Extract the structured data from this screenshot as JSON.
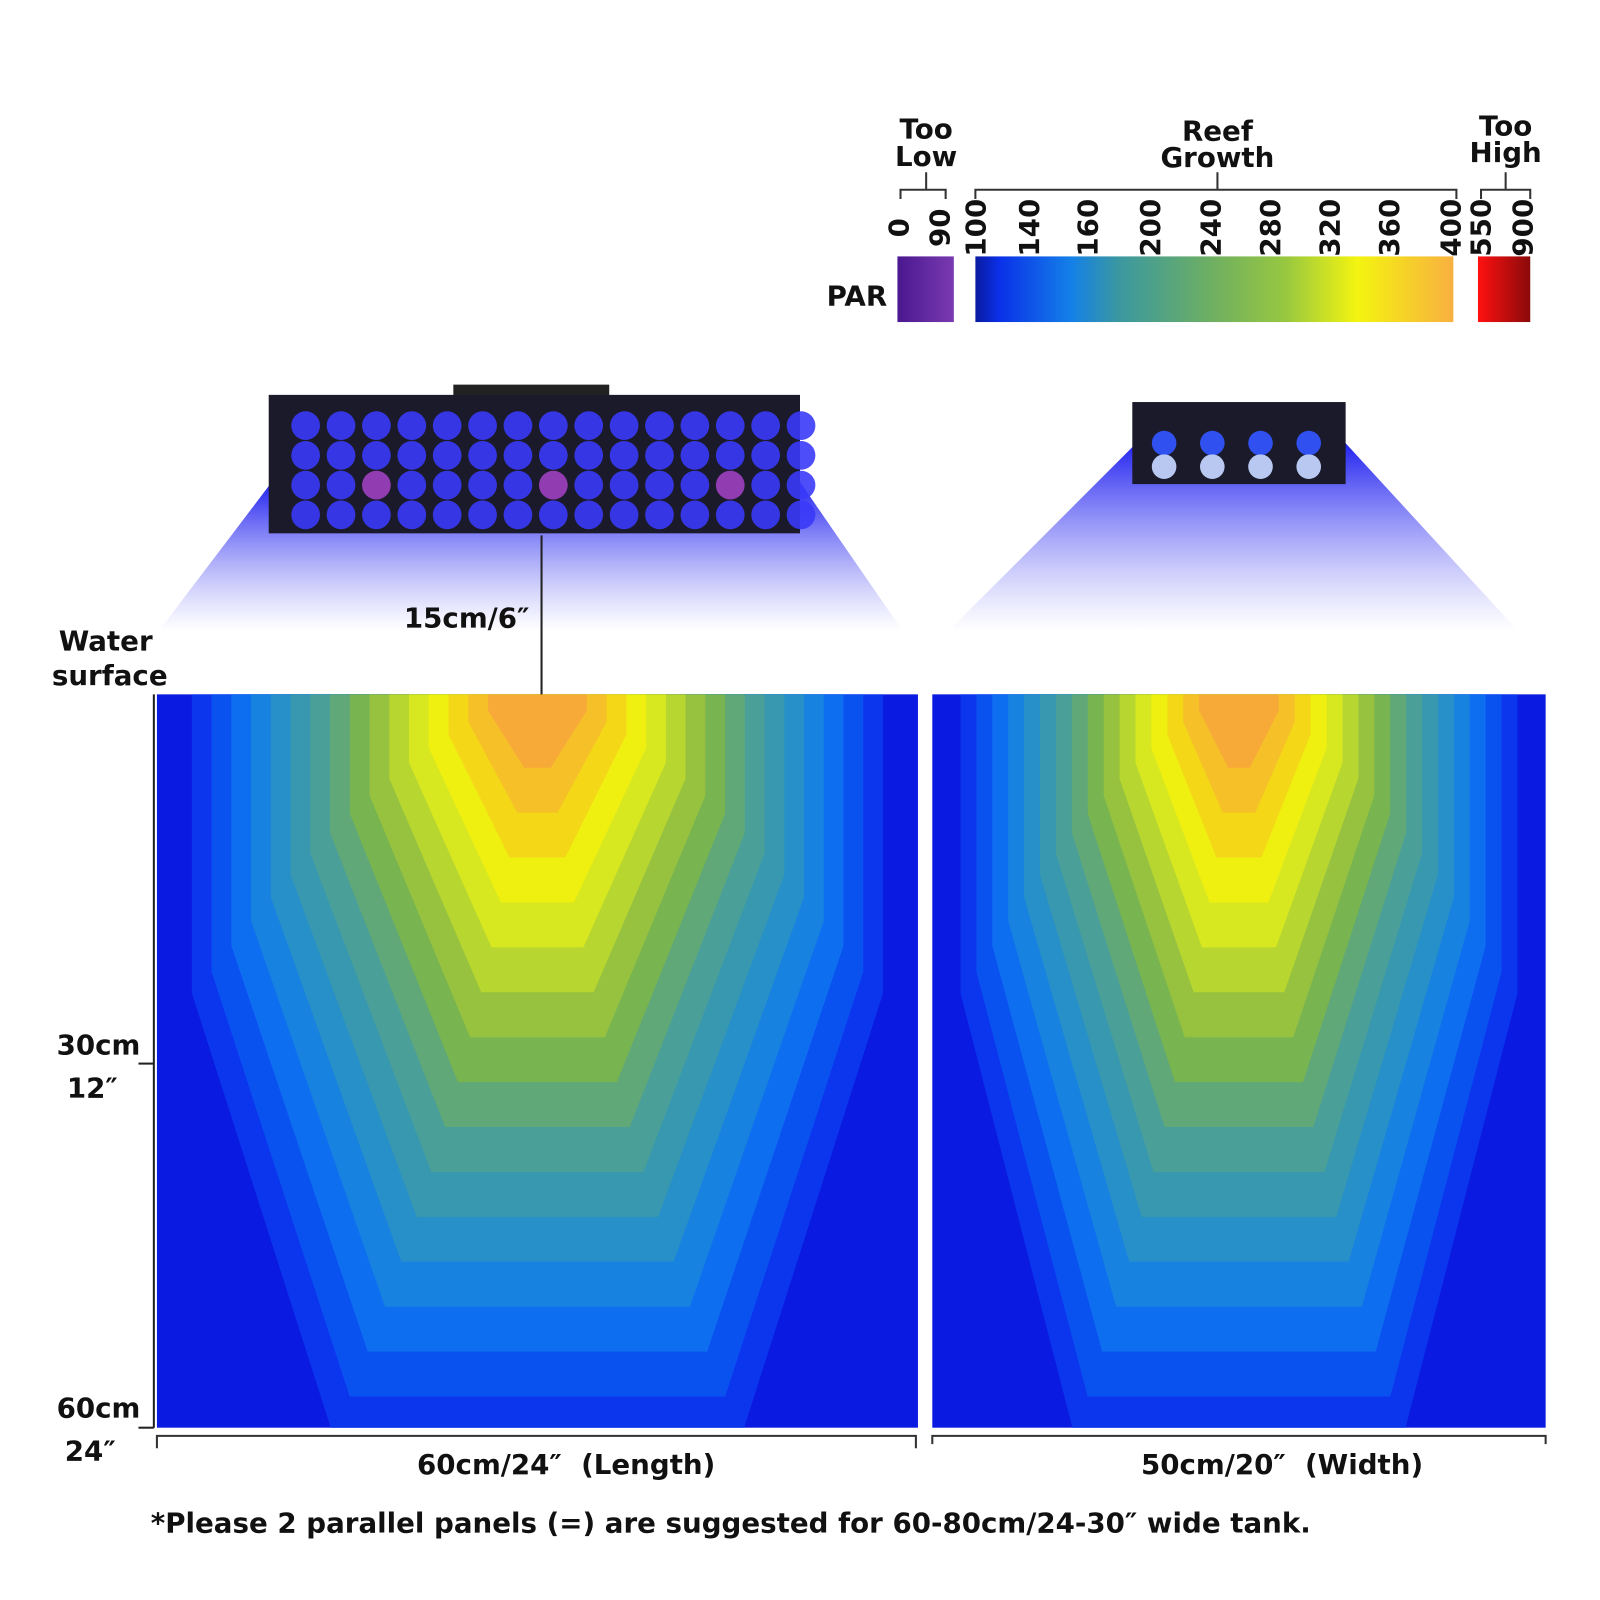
{
  "legend": {
    "label": "PAR",
    "groups": [
      {
        "title": [
          "Too",
          "Low"
        ],
        "ticks": [
          "0",
          "90"
        ]
      },
      {
        "title": [
          "Reef",
          "Growth"
        ],
        "ticks": [
          "100",
          "140",
          "160",
          "200",
          "240",
          "280",
          "320",
          "360",
          "400"
        ]
      },
      {
        "title": [
          "Too",
          "High"
        ],
        "ticks": [
          "550",
          "900"
        ]
      }
    ]
  },
  "distance_label": "15cm/6″",
  "depth_axis": {
    "title": [
      "Water",
      "surface"
    ],
    "ticks": [
      [
        "30cm",
        "12″"
      ],
      [
        "60cm",
        "24″"
      ]
    ]
  },
  "panels": [
    {
      "axis_label": "60cm/24″  (Length)"
    },
    {
      "axis_label": "50cm/20″  (Width)"
    }
  ],
  "footnote": "*Please 2 parallel panels (=) are suggested for 60-80cm/24-30″ wide tank."
}
